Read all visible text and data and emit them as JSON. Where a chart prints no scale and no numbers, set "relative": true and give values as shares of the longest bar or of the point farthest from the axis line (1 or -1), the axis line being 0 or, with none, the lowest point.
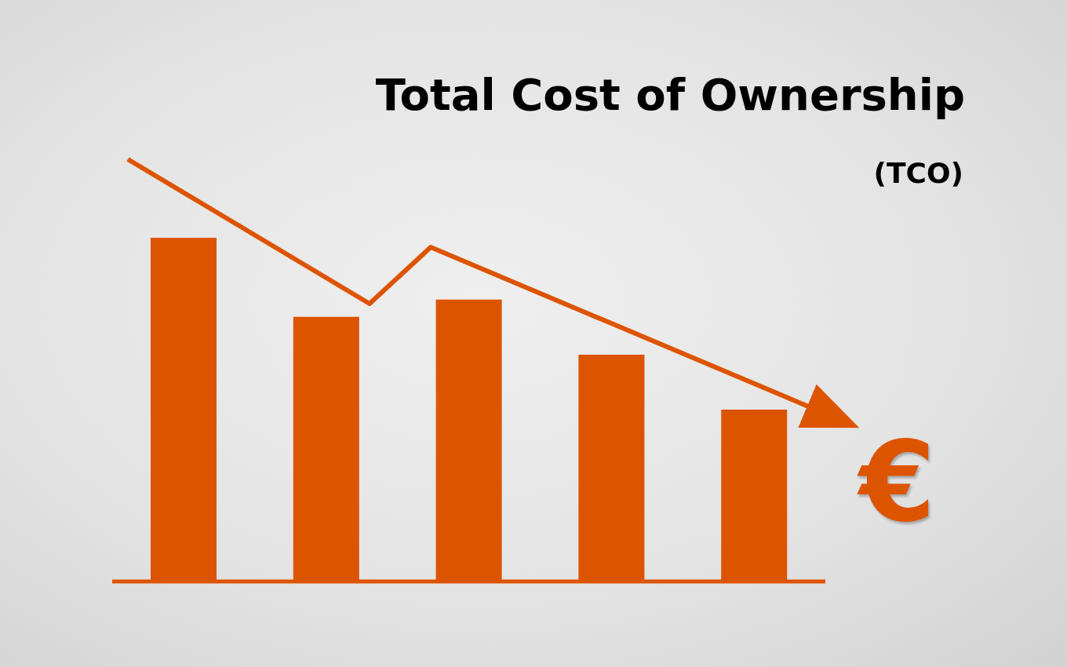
{
  "chart_data": {
    "type": "bar",
    "title": "Total Cost of Ownership",
    "subtitle": "(TCO)",
    "categories": [
      null,
      null,
      null,
      null,
      null
    ],
    "values": [
      1,
      0.77,
      0.82,
      0.66,
      0.5
    ],
    "color": "#dd5400",
    "relative": true,
    "annotations": [
      "€"
    ]
  }
}
